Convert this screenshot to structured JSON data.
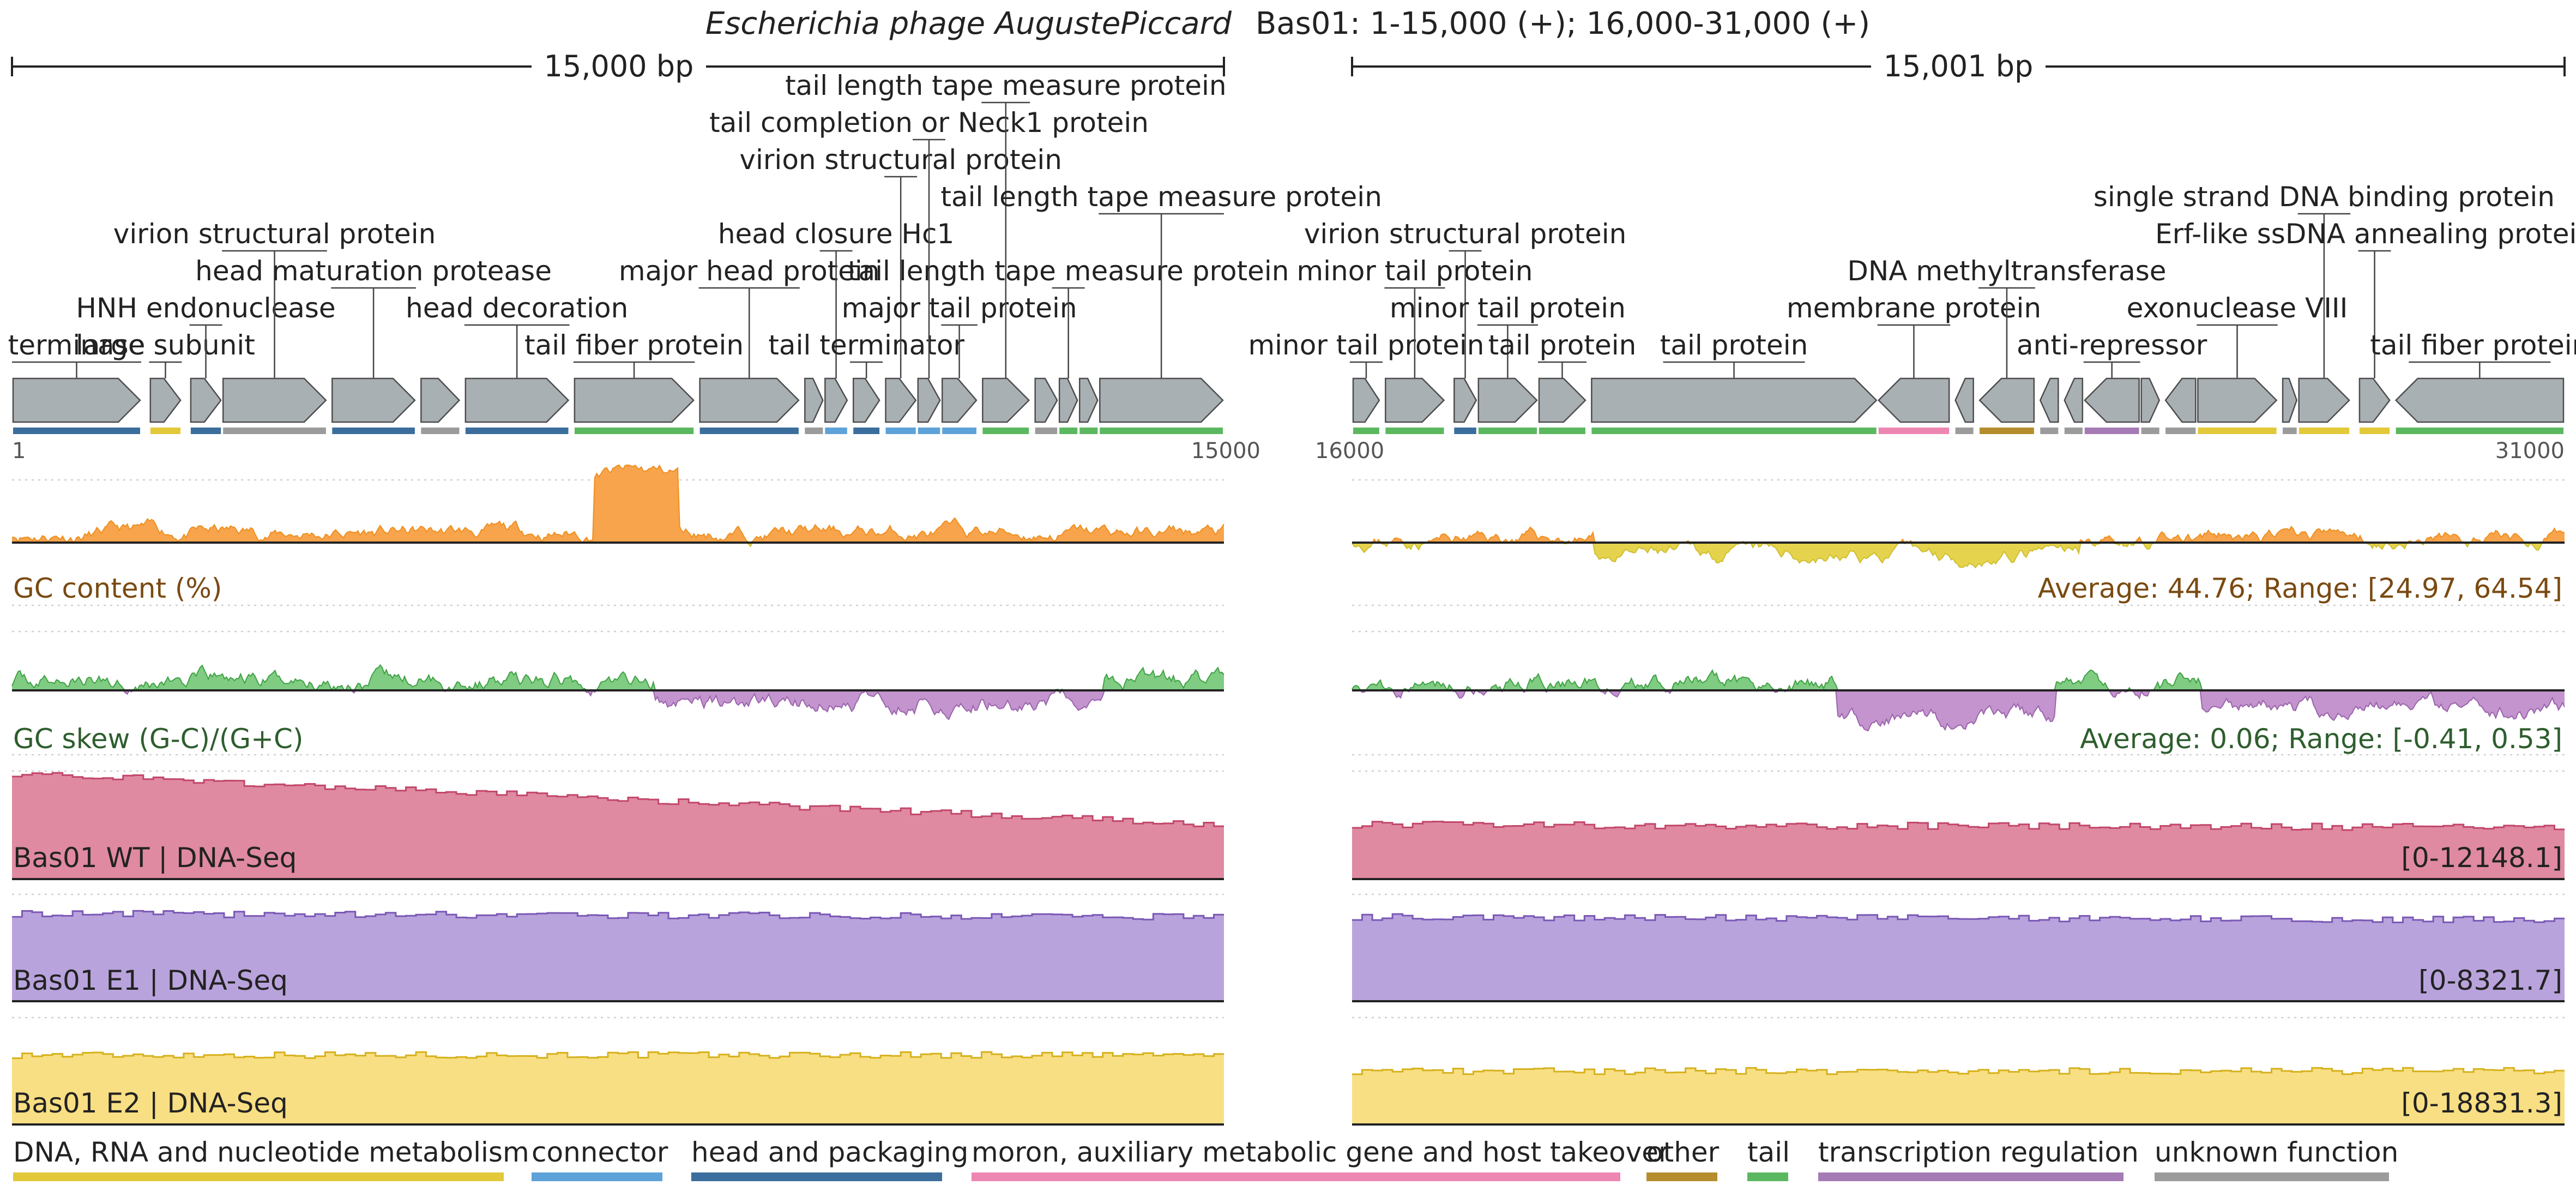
{
  "title": {
    "organism": "Escherichia phage AugustePiccard",
    "segments": "Bas01: 1-15,000 (+); 16,000-31,000 (+)"
  },
  "panels": [
    {
      "id": "left",
      "start": 1,
      "end": 15000,
      "scale_label": "15,000 bp",
      "start_label": "1",
      "end_label": "15000"
    },
    {
      "id": "right",
      "start": 16000,
      "end": 31000,
      "scale_label": "15,001 bp",
      "start_label": "16000",
      "end_label": "31000"
    }
  ],
  "colors": {
    "DNA, RNA and nucleotide metabolism": "#e2c93a",
    "connector": "#5da2d8",
    "head and packaging": "#3b6e9c",
    "moron, auxiliary metabolic gene and host takeover": "#ee86b2",
    "other": "#b58d2d",
    "tail": "#5cb860",
    "transcription regulation": "#a57bb5",
    "unknown function": "#9b9b9b",
    "gene_fill": "#a9b0b3",
    "gene_stroke": "#4d4d4d",
    "gc_above": "#f7a44c",
    "gc_below": "#e6d34d",
    "gc_line_above": "#ef8f1f",
    "gc_line_below": "#cfbf2f",
    "skew_above": "#7fcc82",
    "skew_below": "#c394cd",
    "skew_line_above": "#3fa244",
    "skew_line_below": "#9b63ad",
    "wt_fill": "#df8aa1",
    "wt_line": "#c2476a",
    "e1_fill": "#b9a3dc",
    "e1_line": "#7a58b5",
    "e2_fill": "#f8df84",
    "e2_line": "#d6b11c",
    "gc_text": "#7a4a12",
    "skew_text": "#2e5e2e"
  },
  "genes": [
    {
      "start": 1,
      "end": 1600,
      "strand": "+",
      "cat": "head and packaging",
      "label": "terminase"
    },
    {
      "start": 1700,
      "end": 2100,
      "strand": "+",
      "cat": "DNA, RNA and nucleotide metabolism",
      "label": "large subunit"
    },
    {
      "start": 2200,
      "end": 2600,
      "strand": "+",
      "cat": "head and packaging",
      "label": "HNH endonuclease"
    },
    {
      "start": 2600,
      "end": 3900,
      "strand": "+",
      "cat": "unknown function",
      "label": "virion structural protein"
    },
    {
      "start": 3950,
      "end": 5000,
      "strand": "+",
      "cat": "head and packaging",
      "label": "head maturation protease"
    },
    {
      "start": 5050,
      "end": 5550,
      "strand": "+",
      "cat": "unknown function",
      "label": ""
    },
    {
      "start": 5600,
      "end": 6900,
      "strand": "+",
      "cat": "head and packaging",
      "label": "head decoration"
    },
    {
      "start": 6950,
      "end": 8450,
      "strand": "+",
      "cat": "tail",
      "label": "tail fiber protein"
    },
    {
      "start": 8500,
      "end": 9750,
      "strand": "+",
      "cat": "head and packaging",
      "label": "major head protein"
    },
    {
      "start": 9800,
      "end": 10050,
      "strand": "+",
      "cat": "unknown function",
      "label": ""
    },
    {
      "start": 10050,
      "end": 10350,
      "strand": "+",
      "cat": "connector",
      "label": "head closure Hc1"
    },
    {
      "start": 10400,
      "end": 10750,
      "strand": "+",
      "cat": "head and packaging",
      "label": "tail terminator"
    },
    {
      "start": 10800,
      "end": 11200,
      "strand": "+",
      "cat": "connector",
      "label": "virion structural protein"
    },
    {
      "start": 11200,
      "end": 11500,
      "strand": "+",
      "cat": "connector",
      "label": "tail completion or Neck1 protein"
    },
    {
      "start": 11500,
      "end": 11950,
      "strand": "+",
      "cat": "connector",
      "label": "major tail protein"
    },
    {
      "start": 12000,
      "end": 12600,
      "strand": "+",
      "cat": "tail",
      "label": "tail length tape measure protein"
    },
    {
      "start": 12650,
      "end": 12950,
      "strand": "+",
      "cat": "unknown function",
      "label": ""
    },
    {
      "start": 12950,
      "end": 13200,
      "strand": "+",
      "cat": "tail",
      "label": "tail length tape measure protein"
    },
    {
      "start": 13200,
      "end": 13450,
      "strand": "+",
      "cat": "tail",
      "label": ""
    },
    {
      "start": 13450,
      "end": 15000,
      "strand": "+",
      "cat": "tail",
      "label": "tail length tape measure protein"
    },
    {
      "start": 16000,
      "end": 16350,
      "strand": "+",
      "cat": "tail",
      "label": "minor tail protein"
    },
    {
      "start": 16400,
      "end": 17150,
      "strand": "+",
      "cat": "tail",
      "label": "minor tail protein"
    },
    {
      "start": 17250,
      "end": 17550,
      "strand": "+",
      "cat": "head and packaging",
      "label": "virion structural protein"
    },
    {
      "start": 17550,
      "end": 18300,
      "strand": "+",
      "cat": "tail",
      "label": "minor tail protein"
    },
    {
      "start": 18300,
      "end": 18900,
      "strand": "+",
      "cat": "tail",
      "label": "tail protein"
    },
    {
      "start": 18950,
      "end": 22500,
      "strand": "+",
      "cat": "tail",
      "label": "tail protein"
    },
    {
      "start": 22500,
      "end": 23400,
      "strand": "-",
      "cat": "moron, auxiliary metabolic gene and host takeover",
      "label": "membrane protein"
    },
    {
      "start": 23450,
      "end": 23700,
      "strand": "-",
      "cat": "unknown function",
      "label": ""
    },
    {
      "start": 23750,
      "end": 24450,
      "strand": "-",
      "cat": "other",
      "label": "DNA methyltransferase"
    },
    {
      "start": 24500,
      "end": 24750,
      "strand": "-",
      "cat": "unknown function",
      "label": ""
    },
    {
      "start": 24800,
      "end": 25050,
      "strand": "-",
      "cat": "unknown function",
      "label": ""
    },
    {
      "start": 25050,
      "end": 25750,
      "strand": "-",
      "cat": "transcription regulation",
      "label": "anti-repressor"
    },
    {
      "start": 25750,
      "end": 26000,
      "strand": "+",
      "cat": "unknown function",
      "label": ""
    },
    {
      "start": 26050,
      "end": 26450,
      "strand": "-",
      "cat": "unknown function",
      "label": ""
    },
    {
      "start": 26450,
      "end": 27450,
      "strand": "+",
      "cat": "DNA, RNA and nucleotide metabolism",
      "label": "exonuclease VIII"
    },
    {
      "start": 27500,
      "end": 27700,
      "strand": "+",
      "cat": "unknown function",
      "label": ""
    },
    {
      "start": 27700,
      "end": 28350,
      "strand": "+",
      "cat": "DNA, RNA and nucleotide metabolism",
      "label": "single strand DNA binding protein"
    },
    {
      "start": 28450,
      "end": 28850,
      "strand": "+",
      "cat": "DNA, RNA and nucleotide metabolism",
      "label": "Erf-like ssDNA annealing protein"
    },
    {
      "start": 28900,
      "end": 31000,
      "strand": "-",
      "cat": "tail",
      "label": "tail fiber protein"
    }
  ],
  "tracks": [
    {
      "id": "gc",
      "label": "GC content (%)",
      "stats": "Average: 44.76; Range: [24.97, 64.54]"
    },
    {
      "id": "skew",
      "label": "GC skew (G-C)/(G+C)",
      "stats": "Average: 0.06; Range: [-0.41, 0.53]"
    },
    {
      "id": "wt",
      "label": "Bas01 WT | DNA-Seq",
      "range": "[0-12148.1]"
    },
    {
      "id": "e1",
      "label": "Bas01 E1 | DNA-Seq",
      "range": "[0-8321.7]"
    },
    {
      "id": "e2",
      "label": "Bas01 E2 | DNA-Seq",
      "range": "[0-18831.3]"
    }
  ],
  "legend": [
    "DNA, RNA and nucleotide metabolism",
    "connector",
    "head and packaging",
    "moron, auxiliary metabolic gene and host takeover",
    "other",
    "tail",
    "transcription regulation",
    "unknown function"
  ]
}
